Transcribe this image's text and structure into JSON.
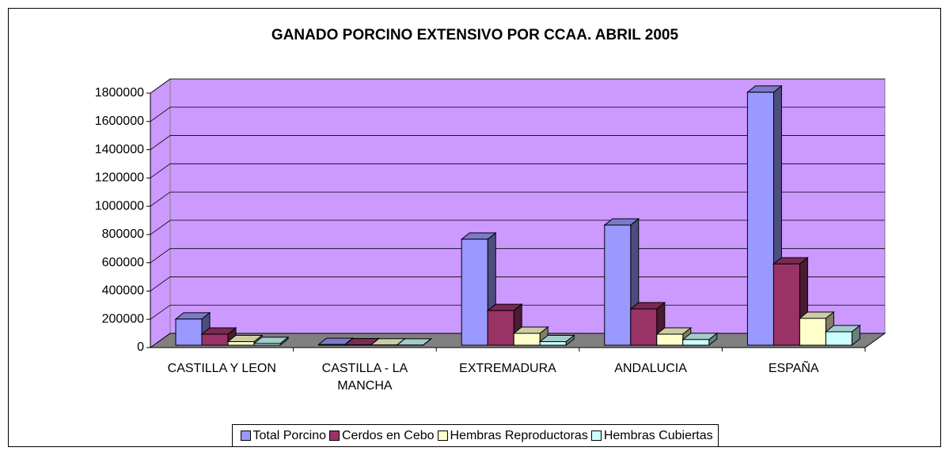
{
  "chart_data": {
    "type": "bar3d",
    "title": "GANADO PORCINO EXTENSIVO POR CCAA. ABRIL 2005",
    "categories": [
      "CASTILLA Y LEON",
      "CASTILLA - LA MANCHA",
      "EXTREMADURA",
      "ANDALUCIA",
      "ESPAÑA"
    ],
    "series": [
      {
        "name": "Total Porcino",
        "color": "#9999FF",
        "values": [
          185000,
          5000,
          750000,
          850000,
          1790000
        ]
      },
      {
        "name": "Cerdos en Cebo",
        "color": "#993366",
        "values": [
          78000,
          3000,
          245000,
          257000,
          575000
        ]
      },
      {
        "name": "Hembras Reproductoras",
        "color": "#FFFFCC",
        "values": [
          25000,
          1500,
          84000,
          78000,
          190000
        ]
      },
      {
        "name": "Hembras Cubiertas",
        "color": "#CCFFFF",
        "values": [
          12000,
          1000,
          25000,
          40000,
          95000
        ]
      }
    ],
    "ylim": [
      0,
      1800000
    ],
    "yticks": [
      0,
      200000,
      400000,
      600000,
      800000,
      1000000,
      1200000,
      1400000,
      1600000,
      1800000
    ],
    "grid": true,
    "wall_color": "#CC99FF",
    "floor_color": "#808080",
    "legend": "bottom"
  }
}
